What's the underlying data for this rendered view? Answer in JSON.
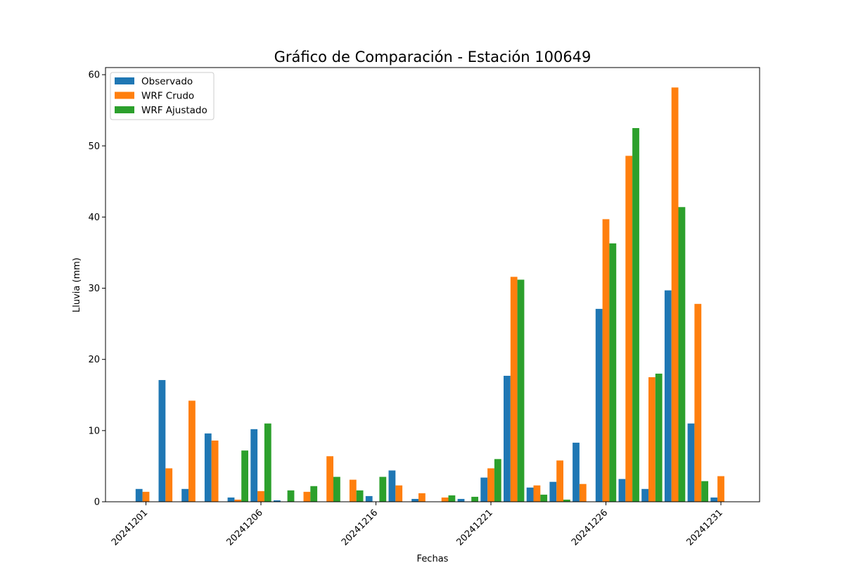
{
  "chart_data": {
    "type": "bar",
    "title": "Gráfico de Comparación - Estación 100649",
    "xlabel": "Fechas",
    "ylabel": "Lluvia (mm)",
    "ylim": [
      0,
      61
    ],
    "yticks": [
      0,
      10,
      20,
      30,
      40,
      50,
      60
    ],
    "xtick_labels": [
      "20241201",
      "20241206",
      "20241216",
      "20241221",
      "20241226",
      "20241231"
    ],
    "xtick_category_index": [
      0,
      5,
      10,
      15,
      20,
      25
    ],
    "grid": false,
    "legend_position": "upper-left",
    "categories": [
      "1",
      "2",
      "3",
      "4",
      "5",
      "6",
      "7",
      "8",
      "9",
      "10",
      "11",
      "12",
      "13",
      "14",
      "15",
      "16",
      "17",
      "18",
      "19",
      "20",
      "21",
      "22",
      "23",
      "24",
      "25",
      "26"
    ],
    "series": [
      {
        "name": "Observado",
        "color": "#1f77b4",
        "values": [
          1.8,
          17.1,
          1.8,
          9.6,
          0.6,
          10.2,
          0.2,
          0,
          0,
          0,
          0.8,
          4.4,
          0.4,
          0,
          0.4,
          3.4,
          17.7,
          2.0,
          2.8,
          8.3,
          27.1,
          3.2,
          1.8,
          29.7,
          11.0,
          0.6
        ]
      },
      {
        "name": "WRF Crudo",
        "color": "#ff7f0e",
        "values": [
          1.4,
          4.7,
          14.2,
          8.6,
          0.3,
          1.5,
          0,
          1.4,
          6.4,
          3.1,
          0,
          2.3,
          1.2,
          0.6,
          0,
          4.7,
          31.6,
          2.3,
          5.8,
          2.5,
          39.7,
          48.6,
          17.5,
          58.2,
          27.8,
          3.6
        ]
      },
      {
        "name": "WRF Ajustado",
        "color": "#2ca02c",
        "values": [
          0,
          0,
          0,
          0,
          7.2,
          11.0,
          1.6,
          2.2,
          3.5,
          1.6,
          3.5,
          0,
          0,
          0.9,
          0.7,
          6.0,
          31.2,
          1.0,
          0.3,
          0,
          36.3,
          52.5,
          18.0,
          41.4,
          2.9,
          0
        ]
      }
    ]
  }
}
